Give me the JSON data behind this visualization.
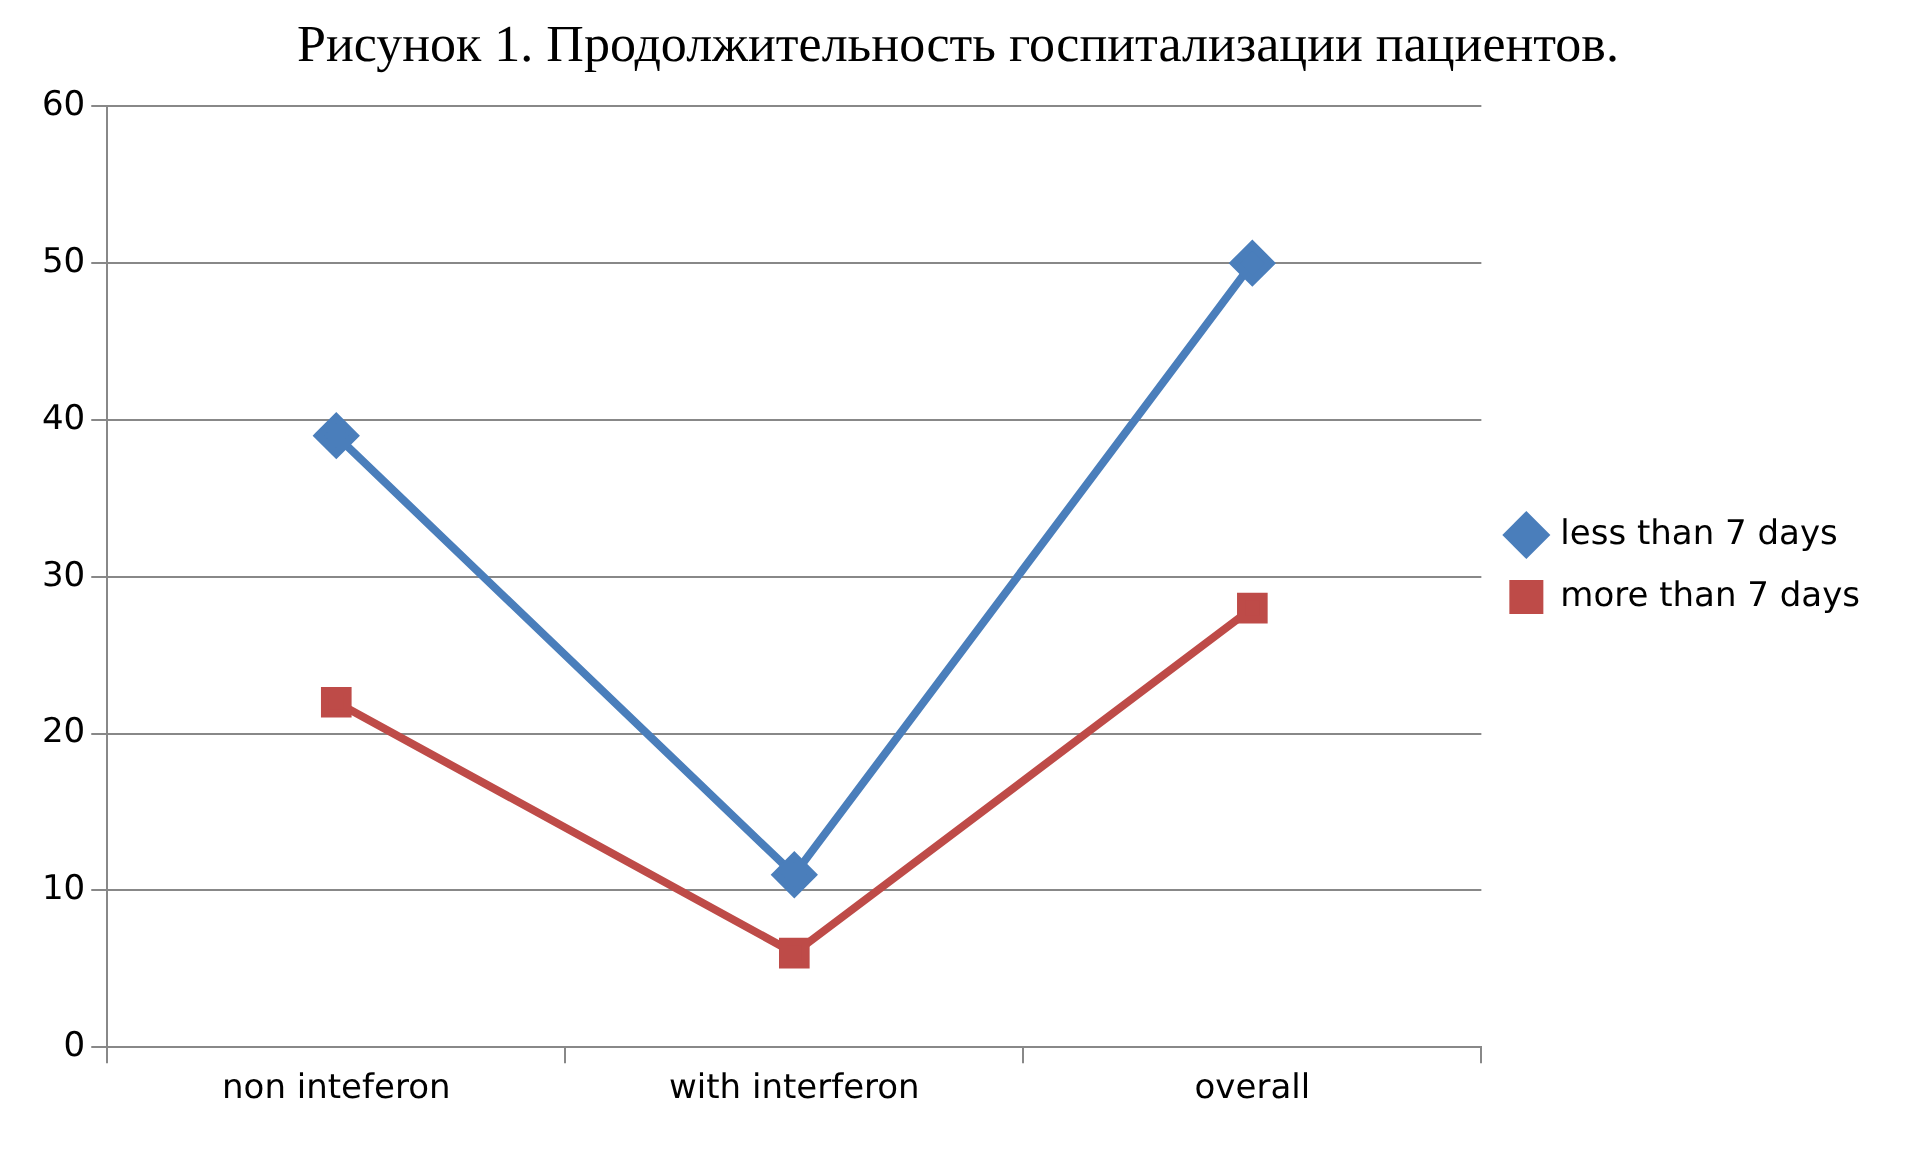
{
  "chart_data": {
    "type": "line",
    "title": "Рисунок 1. Продолжительность госпитализации пациентов.",
    "categories": [
      "non inteferon",
      "with interferon",
      "overall"
    ],
    "series": [
      {
        "name": "less than 7 days",
        "color": "#4a7ebb",
        "values": [
          39,
          11,
          50
        ],
        "marker": "diamond"
      },
      {
        "name": "more than 7 days",
        "color": "#be4b48",
        "values": [
          22,
          6,
          28
        ],
        "marker": "square"
      }
    ],
    "ylim": [
      0,
      60
    ],
    "yticks": [
      0,
      10,
      20,
      30,
      40,
      50,
      60
    ],
    "grid": "y",
    "legend": "right",
    "line_style": "solid"
  }
}
